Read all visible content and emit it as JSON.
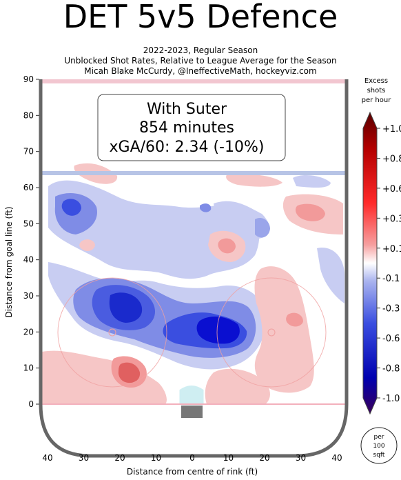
{
  "chart_data": {
    "type": "heatmap",
    "title": "DET 5v5 Defence",
    "subtitle_lines": [
      "2022-2023, Regular Season",
      "Unblocked Shot Rates, Relative to League Average for the Season",
      "Micah Blake McCurdy, @IneffectiveMath, hockeyviz.com"
    ],
    "xlabel": "Distance from centre of rink (ft)",
    "ylabel": "Distance from goal line (ft)",
    "xlim": [
      -42,
      42
    ],
    "ylim": [
      -4,
      90
    ],
    "x_tick_labels": [
      "40",
      "30",
      "20",
      "10",
      "0",
      "10",
      "20",
      "30",
      "40"
    ],
    "y_ticks": [
      0,
      10,
      20,
      30,
      40,
      50,
      60,
      70,
      80,
      90
    ],
    "annotation": {
      "line1": "With Suter",
      "line2": "854 minutes",
      "line3": "xGA/60: 2.34 (-10%)"
    },
    "colorbar": {
      "title_lines": [
        "Excess",
        "shots",
        "per hour"
      ],
      "tick_labels": [
        "+1.0",
        "+0.8",
        "+0.6",
        "+0.3",
        "+0.1",
        "-0.1",
        "-0.3",
        "-0.6",
        "-0.8",
        "-1.0"
      ],
      "unit_lines": [
        "per",
        "100",
        "sqft"
      ]
    },
    "regions": [
      {
        "x": -20,
        "y": 28,
        "value": -0.9,
        "rx": 7,
        "ry": 6
      },
      {
        "x": 9,
        "y": 20,
        "value": -1.0,
        "rx": 7,
        "ry": 5
      },
      {
        "x": -33,
        "y": 54,
        "value": -0.6,
        "rx": 4,
        "ry": 3
      },
      {
        "x": -20,
        "y": 10,
        "value": 0.6,
        "rx": 4,
        "ry": 4
      },
      {
        "x": 28,
        "y": 23,
        "value": 0.3,
        "rx": 3,
        "ry": 2
      },
      {
        "x": 33,
        "y": 52,
        "value": 0.3,
        "rx": 6,
        "ry": 4
      },
      {
        "x": 12,
        "y": 44,
        "value": 0.3,
        "rx": 4,
        "ry": 4
      },
      {
        "x": -29,
        "y": 44,
        "value": 0.1,
        "rx": 2,
        "ry": 2
      }
    ],
    "colors": {
      "negative_strong": "#0000cc",
      "negative_mid": "#5a6ee0",
      "negative_weak": "#c8cdf2",
      "positive_weak": "#f6c6c6",
      "positive_mid": "#f08a8a",
      "positive_strong": "#d94545",
      "boards": "#666666",
      "blue_line": "#b7c4e6",
      "goal_line": "#e8b7c0",
      "faceoff": "#f0a0a0"
    }
  }
}
